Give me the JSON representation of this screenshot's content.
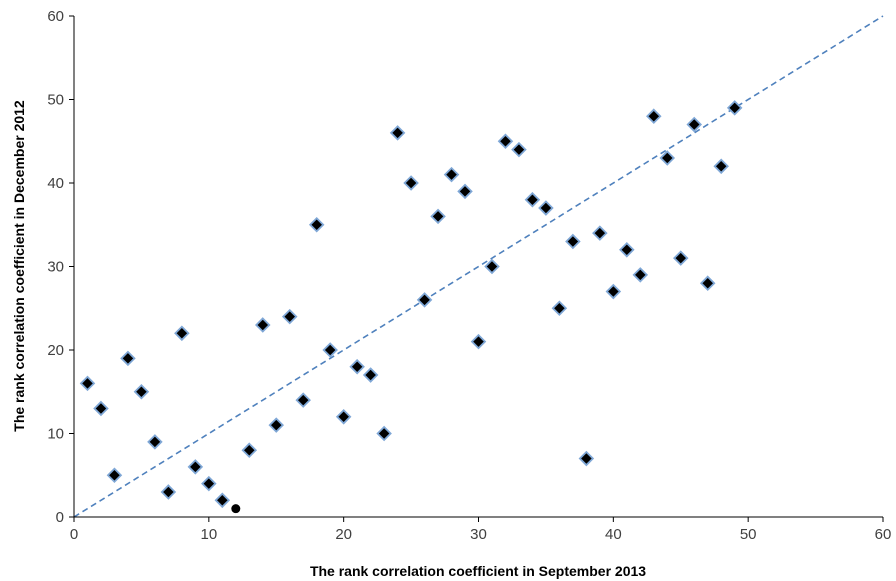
{
  "chart_data": {
    "type": "scatter",
    "title": "",
    "xlabel": "The rank correlation coefficient in September 2013",
    "ylabel": "The rank correlation coefficient in December 2012",
    "xlim": [
      0,
      60
    ],
    "ylim": [
      0,
      60
    ],
    "xticks": [
      0,
      10,
      20,
      30,
      40,
      50,
      60
    ],
    "yticks": [
      0,
      10,
      20,
      30,
      40,
      50,
      60
    ],
    "grid": false,
    "legend": "none",
    "reference_line": {
      "style": "dashed",
      "from": [
        0,
        0
      ],
      "to": [
        60,
        60
      ],
      "color": "#4F81BD"
    },
    "series": [
      {
        "marker": "diamond",
        "fill": "#000000",
        "edge": "#7FA7D6",
        "x": [
          1,
          2,
          3,
          4,
          5,
          6,
          7,
          8,
          9,
          10,
          11,
          13,
          14,
          15,
          16,
          17,
          18,
          19,
          20,
          21,
          22,
          23,
          24,
          25,
          26,
          27,
          28,
          29,
          30,
          31,
          32,
          33,
          34,
          35,
          36,
          37,
          38,
          39,
          40,
          41,
          42,
          43,
          44,
          45,
          46,
          47,
          48,
          49
        ],
        "y": [
          16,
          13,
          5,
          19,
          15,
          9,
          3,
          22,
          6,
          4,
          2,
          8,
          23,
          11,
          24,
          14,
          35,
          20,
          12,
          18,
          17,
          10,
          46,
          40,
          26,
          36,
          41,
          39,
          21,
          30,
          45,
          44,
          38,
          37,
          25,
          33,
          7,
          34,
          27,
          32,
          29,
          48,
          43,
          31,
          47,
          28,
          42,
          49
        ]
      },
      {
        "marker": "circle",
        "fill": "#000000",
        "x": [
          12
        ],
        "y": [
          1
        ]
      }
    ],
    "colors": {
      "axis": "#000000",
      "tick_text": "#404040",
      "reference_line": "#4F81BD",
      "marker_edge": "#7FA7D6"
    }
  }
}
